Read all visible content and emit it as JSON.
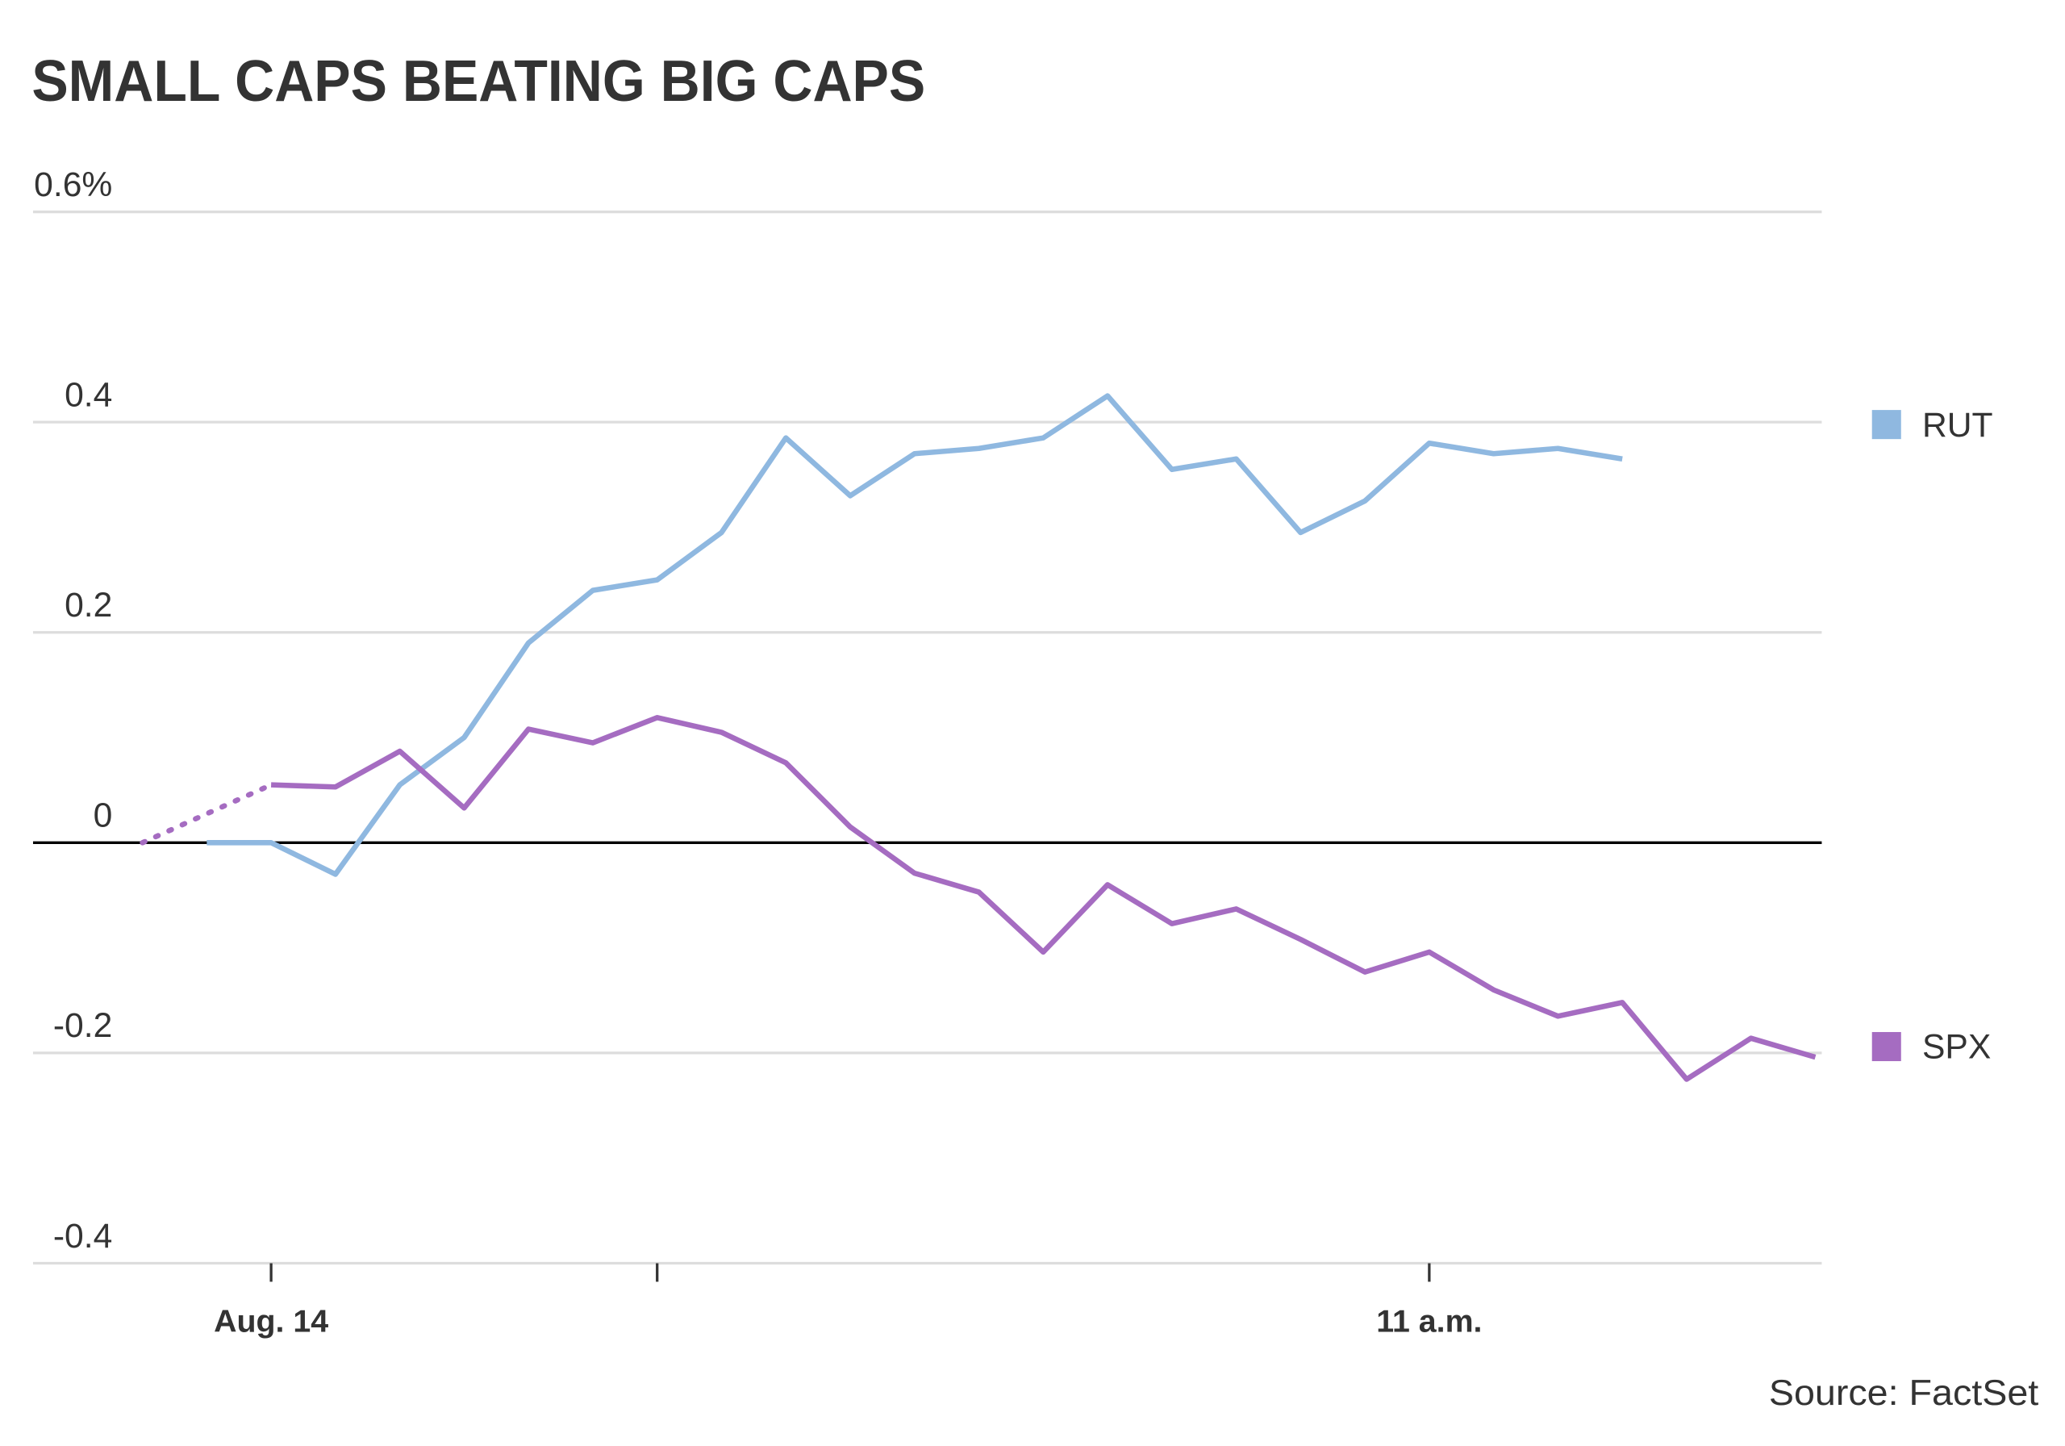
{
  "chart_data": {
    "type": "line",
    "title": "SMALL CAPS BEATING BIG CAPS",
    "source": "Source: FactSet",
    "xlim": [
      -18.5,
      120.5
    ],
    "xticks": [
      {
        "value": 0,
        "label": "Aug. 14"
      },
      {
        "value": 30,
        "label": null
      },
      {
        "value": 90,
        "label": "11 a.m."
      }
    ],
    "ylim": [
      -0.4,
      0.6
    ],
    "yticks": [
      {
        "value": -0.4,
        "label": "-0.4"
      },
      {
        "value": -0.2,
        "label": "-0.2"
      },
      0,
      0.2,
      0.4,
      {
        "value": 0.6,
        "label": "0.6%"
      }
    ],
    "grid": true,
    "legend": "right",
    "series": [
      {
        "name": "RUT",
        "color": "#8fb8e0",
        "x": [
          -5,
          0,
          5,
          10,
          15,
          20,
          25,
          30,
          35,
          40,
          45,
          50,
          55,
          60,
          65,
          70,
          75,
          80,
          85,
          90,
          95,
          100,
          105
        ],
        "values": [
          0,
          0,
          -0.03,
          0.055,
          0.1,
          0.19,
          0.24,
          0.25,
          0.295,
          0.385,
          0.33,
          0.37,
          0.375,
          0.385,
          0.425,
          0.355,
          0.365,
          0.295,
          0.325,
          0.38,
          0.37,
          0.375,
          0.365
        ]
      },
      {
        "name": "SPX",
        "color": "#a56cc1",
        "dotted_first_segment": true,
        "x": [
          -10,
          0,
          5,
          10,
          15,
          20,
          25,
          30,
          35,
          40,
          45,
          50,
          55,
          60,
          65,
          70,
          75,
          80,
          85,
          90,
          95,
          100,
          105,
          110,
          115,
          120
        ],
        "values": [
          0,
          0.055,
          0.053,
          0.087,
          0.033,
          0.108,
          0.095,
          0.119,
          0.105,
          0.076,
          0.015,
          -0.029,
          -0.047,
          -0.104,
          -0.04,
          -0.077,
          -0.063,
          -0.092,
          -0.123,
          -0.104,
          -0.14,
          -0.165,
          -0.152,
          -0.225,
          -0.186,
          -0.204
        ]
      }
    ]
  }
}
